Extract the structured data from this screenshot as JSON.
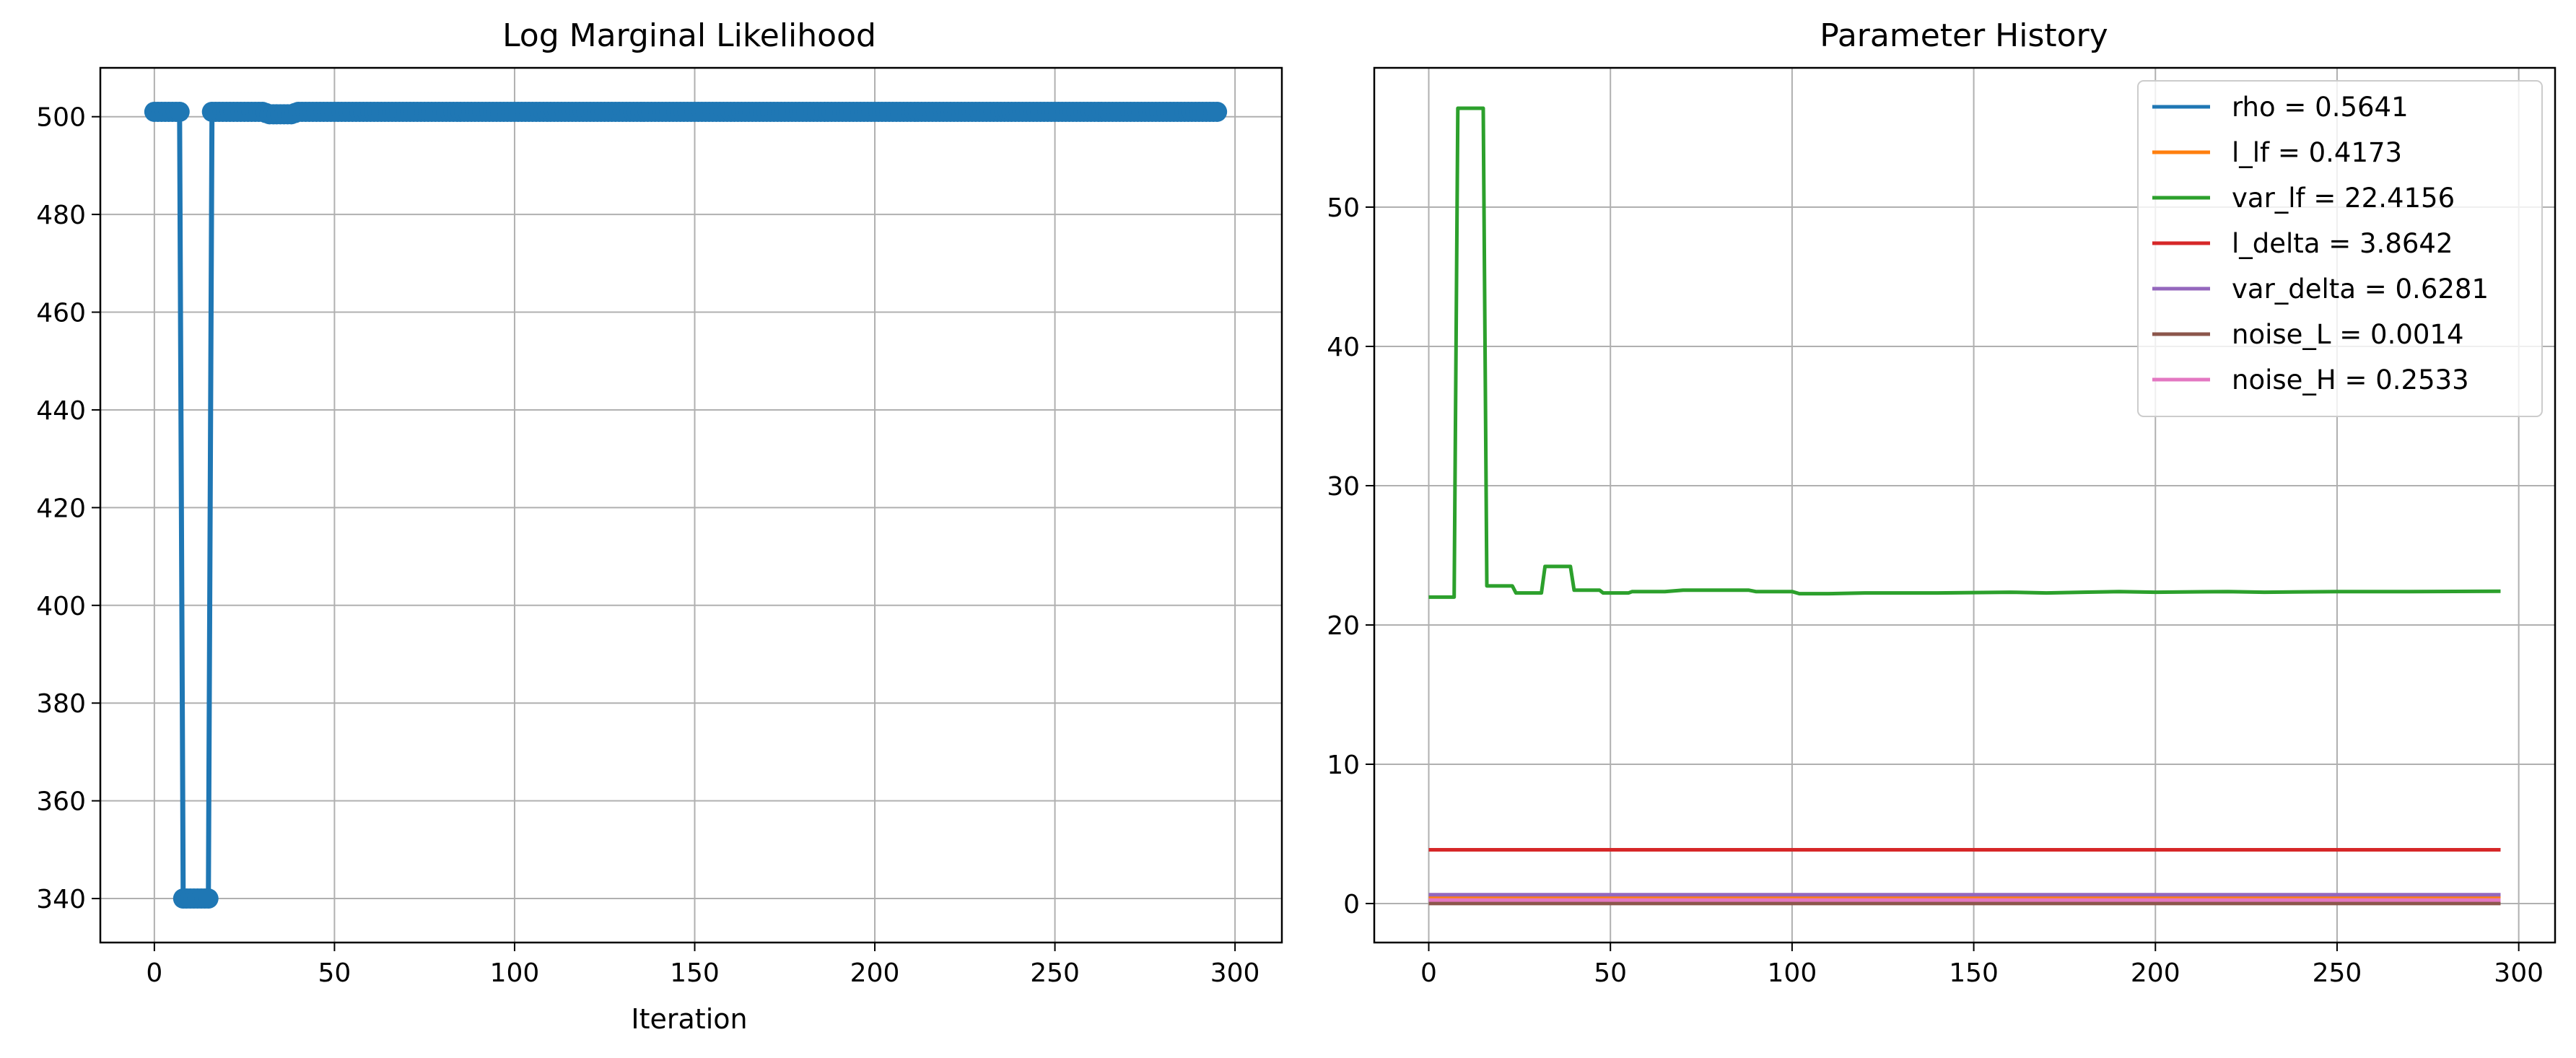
{
  "chart_data": [
    {
      "type": "line",
      "title": "Log Marginal Likelihood",
      "xlabel": "Iteration",
      "ylabel": "",
      "xlim": [
        -15,
        313
      ],
      "ylim": [
        331,
        510
      ],
      "xticks": [
        0,
        50,
        100,
        150,
        200,
        250,
        300
      ],
      "yticks": [
        340,
        360,
        380,
        400,
        420,
        440,
        460,
        480,
        500
      ],
      "grid": true,
      "markers": true,
      "color": "#1f77b4",
      "series": [
        {
          "x": [
            0,
            1,
            2,
            3,
            4,
            5,
            6,
            7,
            8,
            9,
            10,
            11,
            12,
            13,
            14,
            15,
            16,
            17,
            18,
            19,
            20,
            25,
            30,
            32,
            34,
            36,
            38,
            40,
            45,
            50,
            100,
            150,
            200,
            250,
            295
          ],
          "y": [
            501,
            501,
            501,
            501,
            501,
            501,
            501,
            501,
            340,
            340,
            340,
            340,
            340,
            340,
            340,
            340,
            501,
            501,
            501,
            501,
            501,
            501,
            501,
            500.5,
            500.5,
            500.5,
            500.5,
            501,
            501,
            501,
            501,
            501,
            501,
            501,
            501
          ]
        }
      ]
    },
    {
      "type": "line",
      "title": "Parameter History",
      "xlabel": "",
      "ylabel": "",
      "xlim": [
        -15,
        310
      ],
      "ylim": [
        -2.8,
        60
      ],
      "xticks": [
        0,
        50,
        100,
        150,
        200,
        250,
        300
      ],
      "yticks": [
        0,
        10,
        20,
        30,
        40,
        50
      ],
      "grid": true,
      "legend_position": "top-right",
      "series": [
        {
          "name": "rho = 0.5641",
          "color": "#1f77b4",
          "x": [
            0,
            295
          ],
          "y": [
            0.56,
            0.56
          ]
        },
        {
          "name": "l_lf = 0.4173",
          "color": "#ff7f0e",
          "x": [
            0,
            295
          ],
          "y": [
            0.42,
            0.42
          ]
        },
        {
          "name": "var_lf = 22.4156",
          "color": "#2ca02c",
          "x": [
            0,
            7,
            8,
            15,
            16,
            23,
            24,
            31,
            32,
            39,
            40,
            47,
            48,
            55,
            56,
            65,
            70,
            88,
            90,
            100,
            102,
            110,
            120,
            140,
            160,
            170,
            180,
            190,
            200,
            220,
            230,
            250,
            270,
            295
          ],
          "y": [
            22.0,
            22.0,
            57.1,
            57.1,
            22.8,
            22.8,
            22.3,
            22.3,
            24.2,
            24.2,
            22.5,
            22.5,
            22.3,
            22.3,
            22.4,
            22.4,
            22.5,
            22.5,
            22.4,
            22.4,
            22.25,
            22.25,
            22.3,
            22.3,
            22.35,
            22.3,
            22.35,
            22.4,
            22.35,
            22.4,
            22.35,
            22.4,
            22.4,
            22.42
          ]
        },
        {
          "name": "l_delta = 3.8642",
          "color": "#d62728",
          "x": [
            0,
            295
          ],
          "y": [
            3.86,
            3.86
          ]
        },
        {
          "name": "var_delta = 0.6281",
          "color": "#9467bd",
          "x": [
            0,
            295
          ],
          "y": [
            0.63,
            0.63
          ]
        },
        {
          "name": "noise_L = 0.0014",
          "color": "#8c564b",
          "x": [
            0,
            295
          ],
          "y": [
            0.0014,
            0.0014
          ]
        },
        {
          "name": "noise_H = 0.2533",
          "color": "#e377c2",
          "x": [
            0,
            295
          ],
          "y": [
            0.25,
            0.25
          ]
        }
      ]
    }
  ]
}
